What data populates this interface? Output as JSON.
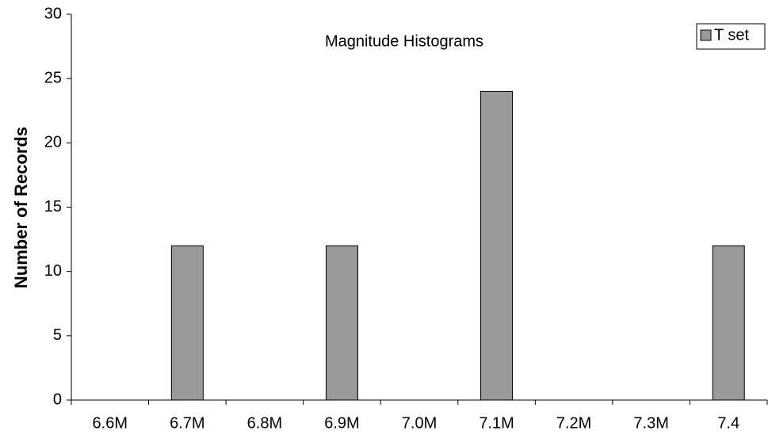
{
  "chart_data": {
    "type": "bar",
    "title": "Magnitude Histograms",
    "y_label": "Number of Records",
    "categories": [
      "6.6M",
      "6.7M",
      "6.8M",
      "6.9M",
      "7.0M",
      "7.1M",
      "7.2M",
      "7.3M",
      "7.4"
    ],
    "series": [
      {
        "name": "T set",
        "color": "#999999",
        "values": [
          0,
          12,
          0,
          12,
          0,
          24,
          0,
          0,
          12
        ]
      }
    ],
    "ylim": [
      0,
      30
    ],
    "yticks": [
      0,
      5,
      10,
      15,
      20,
      25,
      30
    ],
    "grid": false,
    "legend": "upper right"
  }
}
